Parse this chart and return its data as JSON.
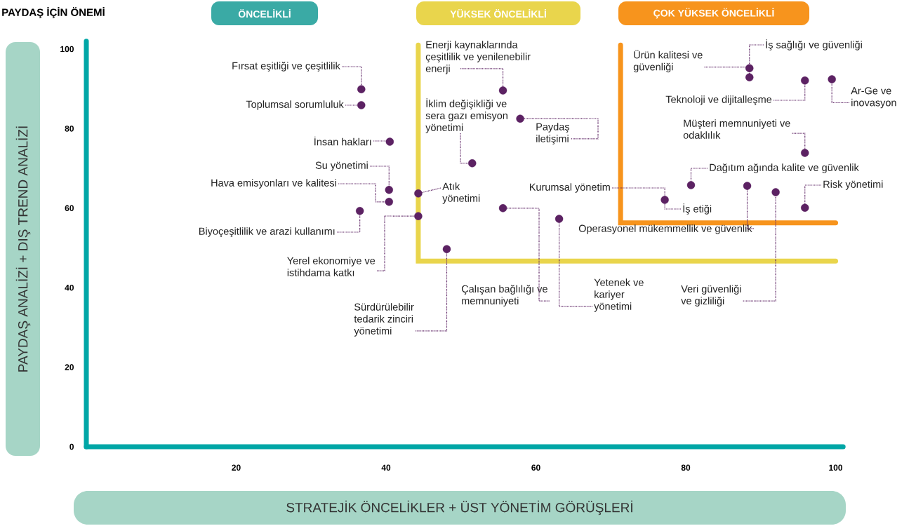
{
  "chart_data": {
    "type": "scatter",
    "xlabel": "STRATEJİK ÖNCELİKLER + ÜST YÖNETİM GÖRÜŞLERİ",
    "ylabel": "PAYDAŞ ANALİZİ + DIŞ TREND ANALİZİ",
    "xlim": [
      0,
      101
    ],
    "ylim": [
      0,
      102
    ],
    "xticks": [
      20,
      40,
      60,
      80,
      100
    ],
    "yticks": [
      0,
      20,
      40,
      60,
      80,
      100
    ],
    "series": [
      {
        "type": "line",
        "marker": "none",
        "color": "#e9d54c",
        "x": [
          44.3,
          44.3,
          100
        ],
        "values": [
          101,
          46.7,
          46.7
        ]
      },
      {
        "type": "line",
        "marker": "none",
        "color": "#f7941d",
        "x": [
          71.3,
          71.3,
          100
        ],
        "values": [
          101,
          56.3,
          56.3
        ]
      },
      {
        "marker": "circle",
        "color": "#5c2263",
        "x": [
          36.7,
          36.7,
          40.5,
          40.4,
          40.4,
          36.5,
          44.3,
          44.3,
          48.1,
          55.6,
          51.5,
          57.9,
          55.6,
          63.1,
          88.5,
          88.5,
          95.9,
          99.5,
          95.9,
          80.7,
          77.2,
          88.2,
          92.0,
          95.9
        ],
        "values": [
          89.9,
          85.9,
          76.7,
          64.6,
          61.6,
          59.3,
          58.0,
          63.7,
          49.7,
          89.6,
          71.3,
          82.5,
          60.0,
          57.3,
          92.9,
          95.2,
          92.1,
          92.4,
          73.9,
          65.8,
          62.1,
          65.6,
          64.0,
          60.1
        ]
      }
    ],
    "annotations": [
      "PAYDAŞ İÇİN ÖNEMİ",
      "ÖNCELİKLİ",
      "YÜKSEK ÖNCELİKLİ",
      "ÇOK YÜKSEK ÖNCELİKLİ",
      {
        "text": "Fırsat eşitliği ve çeşitlilik",
        "x": 36.7,
        "y": 89.9
      },
      {
        "text": "Toplumsal sorumluluk",
        "x": 36.7,
        "y": 85.9
      },
      {
        "text": "İnsan hakları",
        "x": 40.5,
        "y": 76.7
      },
      {
        "text": "Su yönetimi",
        "x": 40.4,
        "y": 64.6
      },
      {
        "text": "Hava emisyonları ve kalitesi",
        "x": 40.4,
        "y": 61.6
      },
      {
        "text": "Biyoçeşitlilik ve arazi kullanımı",
        "x": 36.5,
        "y": 59.3
      },
      {
        "text": "Yerel ekonomiye ve istihdama katkı",
        "x": 44.3,
        "y": 58.0
      },
      {
        "text": "Atık yönetimi",
        "x": 44.3,
        "y": 63.7
      },
      {
        "text": "Sürdürülebilir tedarik zinciri yönetimi",
        "x": 48.1,
        "y": 49.7
      },
      {
        "text": "Enerji kaynaklarında çeşitlilik ve yenilenebilir enerji",
        "x": 55.6,
        "y": 89.6
      },
      {
        "text": "İklim değişikliği ve sera gazı emisyon yönetimi",
        "x": 51.5,
        "y": 71.3
      },
      {
        "text": "Paydaş iletişimi",
        "x": 57.9,
        "y": 82.5
      },
      {
        "text": "Çalışan bağlılığı ve memnuniyeti",
        "x": 55.6,
        "y": 60.0
      },
      {
        "text": "Yetenek ve kariyer yönetimi",
        "x": 63.1,
        "y": 57.3
      },
      {
        "text": "Ürün kalitesi ve güvenliği",
        "x": 88.5,
        "y": 92.9
      },
      {
        "text": "İş sağlığı ve güvenliği",
        "x": 88.5,
        "y": 95.2
      },
      {
        "text": "Teknoloji ve dijitalleşme",
        "x": 95.9,
        "y": 92.1
      },
      {
        "text": "Ar-Ge ve inovasyon",
        "x": 99.5,
        "y": 92.4
      },
      {
        "text": "Müşteri memnuniyeti ve odaklılık",
        "x": 95.9,
        "y": 73.9
      },
      {
        "text": "Dağıtım ağında kalite ve güvenlik",
        "x": 80.7,
        "y": 65.8
      },
      {
        "text": "Kurumsal yönetim",
        "x": 77.2,
        "y": 62.1
      },
      {
        "text": "İş etiği",
        "x": 77.2,
        "y": 62.1
      },
      {
        "text": "Operasyonel mükemmellik ve güvenlik",
        "x": 88.2,
        "y": 65.6
      },
      {
        "text": "Veri güvenliği ve gizliliği",
        "x": 92.0,
        "y": 64.0
      },
      {
        "text": "Risk yönetimi",
        "x": 95.9,
        "y": 60.1
      }
    ]
  }
}
